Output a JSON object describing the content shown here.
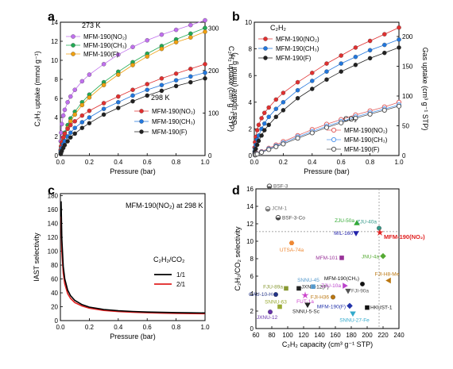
{
  "panels": {
    "a": {
      "letter": "a"
    },
    "b": {
      "letter": "b"
    },
    "c": {
      "letter": "c"
    },
    "d": {
      "letter": "d"
    }
  },
  "chart_data": [
    {
      "id": "a",
      "type": "scatter",
      "xlabel": "Pressure (bar)",
      "ylabel_left": "C₂H₂ uptake (mmol g⁻¹)",
      "ylabel_right": "C₂H₂ uptake (cm³ g⁻¹ STP)",
      "xlim": [
        0,
        1.0
      ],
      "ylim": [
        0,
        14
      ],
      "y2lim": [
        0,
        313.6
      ],
      "xticks": [
        "0.0",
        "0.2",
        "0.4",
        "0.6",
        "0.8",
        "1.0"
      ],
      "yticks": [
        "0",
        "2",
        "4",
        "6",
        "8",
        "10",
        "12",
        "14"
      ],
      "y2ticks": [
        "0",
        "100",
        "200",
        "300"
      ],
      "legend_groups": [
        {
          "title": "273 K",
          "placement": "top-left"
        },
        {
          "title": "298 K",
          "placement": "center-right"
        }
      ],
      "series": [
        {
          "name": "MFM-190(NO₂)",
          "temp": "273 K",
          "color": "#c070ee",
          "marker": "circle",
          "x": [
            0.002,
            0.005,
            0.01,
            0.02,
            0.03,
            0.05,
            0.07,
            0.1,
            0.15,
            0.2,
            0.3,
            0.4,
            0.5,
            0.6,
            0.7,
            0.8,
            0.9,
            1.0
          ],
          "y": [
            1.5,
            2.4,
            3.3,
            4.2,
            4.8,
            5.6,
            6.2,
            6.9,
            7.8,
            8.5,
            9.6,
            10.6,
            11.4,
            12.1,
            12.7,
            13.2,
            13.7,
            14.2
          ]
        },
        {
          "name": "MFM-190(CH₃)",
          "temp": "273 K",
          "color": "#22aa55",
          "marker": "circle",
          "x": [
            0.002,
            0.005,
            0.01,
            0.02,
            0.03,
            0.05,
            0.07,
            0.1,
            0.15,
            0.2,
            0.3,
            0.4,
            0.5,
            0.6,
            0.7,
            0.8,
            0.9,
            1.0
          ],
          "y": [
            0.5,
            0.9,
            1.3,
            1.9,
            2.4,
            3.2,
            3.9,
            4.6,
            5.6,
            6.4,
            7.7,
            8.8,
            9.8,
            10.7,
            11.5,
            12.2,
            12.8,
            13.4
          ]
        },
        {
          "name": "MFM-190(F)",
          "temp": "273 K",
          "color": "#f0a010",
          "marker": "circle",
          "x": [
            0.002,
            0.005,
            0.01,
            0.02,
            0.03,
            0.05,
            0.07,
            0.1,
            0.15,
            0.2,
            0.3,
            0.4,
            0.5,
            0.6,
            0.7,
            0.8,
            0.9,
            1.0
          ],
          "y": [
            0.3,
            0.6,
            1.0,
            1.6,
            2.1,
            2.9,
            3.6,
            4.3,
            5.3,
            6.1,
            7.4,
            8.5,
            9.5,
            10.4,
            11.2,
            11.9,
            12.4,
            13.0
          ]
        },
        {
          "name": "MFM-190(NO₂)",
          "temp": "298 K",
          "color": "#e03030",
          "marker": "circle",
          "x": [
            0.002,
            0.005,
            0.01,
            0.02,
            0.03,
            0.05,
            0.07,
            0.1,
            0.15,
            0.2,
            0.3,
            0.4,
            0.5,
            0.6,
            0.7,
            0.8,
            0.9,
            1.0
          ],
          "y": [
            0.6,
            1.0,
            1.4,
            1.9,
            2.3,
            2.8,
            3.2,
            3.6,
            4.2,
            4.7,
            5.5,
            6.2,
            6.9,
            7.5,
            8.1,
            8.6,
            9.1,
            9.6
          ]
        },
        {
          "name": "MFM-190(CH₃)",
          "temp": "298 K",
          "color": "#2277dd",
          "marker": "circle",
          "x": [
            0.002,
            0.005,
            0.01,
            0.02,
            0.03,
            0.05,
            0.07,
            0.1,
            0.15,
            0.2,
            0.3,
            0.4,
            0.5,
            0.6,
            0.7,
            0.8,
            0.9,
            1.0
          ],
          "y": [
            0.3,
            0.5,
            0.8,
            1.2,
            1.5,
            2.0,
            2.4,
            2.9,
            3.5,
            4.0,
            4.9,
            5.6,
            6.3,
            6.9,
            7.4,
            7.9,
            8.3,
            8.7
          ]
        },
        {
          "name": "MFM-190(F)",
          "temp": "298 K",
          "color": "#222222",
          "marker": "circle",
          "x": [
            0.002,
            0.005,
            0.01,
            0.02,
            0.03,
            0.05,
            0.07,
            0.1,
            0.15,
            0.2,
            0.3,
            0.4,
            0.5,
            0.6,
            0.7,
            0.8,
            0.9,
            1.0
          ],
          "y": [
            0.15,
            0.3,
            0.5,
            0.8,
            1.1,
            1.5,
            1.9,
            2.3,
            2.9,
            3.4,
            4.3,
            5.0,
            5.7,
            6.3,
            6.8,
            7.3,
            7.7,
            8.1
          ]
        }
      ]
    },
    {
      "id": "b",
      "type": "scatter",
      "xlabel": "Pressure (bar)",
      "ylabel_left": "Gas uptake (mmol g⁻¹)",
      "ylabel_right": "Gas uptake (cm³ g⁻¹ STP)",
      "xlim": [
        0,
        1.0
      ],
      "ylim": [
        0,
        10
      ],
      "y2lim": [
        0,
        224
      ],
      "xticks": [
        "0.0",
        "0.2",
        "0.4",
        "0.6",
        "0.8",
        "1.0"
      ],
      "yticks": [
        "0",
        "2",
        "4",
        "6",
        "8",
        "10"
      ],
      "y2ticks": [
        "0",
        "50",
        "100",
        "150",
        "200"
      ],
      "legend_groups": [
        {
          "title": "C₂H₂",
          "placement": "top-left"
        },
        {
          "title": "CO₂",
          "placement": "bottom-right"
        }
      ],
      "series": [
        {
          "name": "MFM-190(NO₂)",
          "gas": "C₂H₂",
          "color": "#e03030",
          "marker": "circle",
          "x": [
            0.002,
            0.005,
            0.01,
            0.02,
            0.03,
            0.05,
            0.07,
            0.1,
            0.15,
            0.2,
            0.3,
            0.4,
            0.5,
            0.6,
            0.7,
            0.8,
            0.9,
            1.0
          ],
          "y": [
            0.6,
            1.0,
            1.4,
            1.9,
            2.3,
            2.8,
            3.2,
            3.6,
            4.2,
            4.7,
            5.5,
            6.2,
            6.9,
            7.5,
            8.1,
            8.6,
            9.1,
            9.6
          ]
        },
        {
          "name": "MFM-190(CH₃)",
          "gas": "C₂H₂",
          "color": "#2277dd",
          "marker": "circle",
          "x": [
            0.002,
            0.005,
            0.01,
            0.02,
            0.03,
            0.05,
            0.07,
            0.1,
            0.15,
            0.2,
            0.3,
            0.4,
            0.5,
            0.6,
            0.7,
            0.8,
            0.9,
            1.0
          ],
          "y": [
            0.3,
            0.5,
            0.8,
            1.2,
            1.5,
            2.0,
            2.4,
            2.9,
            3.5,
            4.0,
            4.9,
            5.6,
            6.3,
            6.9,
            7.4,
            7.9,
            8.3,
            8.7
          ]
        },
        {
          "name": "MFM-190(F)",
          "gas": "C₂H₂",
          "color": "#222222",
          "marker": "circle",
          "x": [
            0.002,
            0.005,
            0.01,
            0.02,
            0.03,
            0.05,
            0.07,
            0.1,
            0.15,
            0.2,
            0.3,
            0.4,
            0.5,
            0.6,
            0.7,
            0.8,
            0.9,
            1.0
          ],
          "y": [
            0.15,
            0.3,
            0.5,
            0.8,
            1.1,
            1.5,
            1.9,
            2.3,
            2.9,
            3.4,
            4.3,
            5.0,
            5.7,
            6.3,
            6.8,
            7.3,
            7.7,
            8.1
          ]
        },
        {
          "name": "MFM-190(NO₂)",
          "gas": "CO₂",
          "color": "#e06060",
          "marker": "open-circle",
          "x": [
            0.005,
            0.01,
            0.02,
            0.05,
            0.1,
            0.15,
            0.2,
            0.3,
            0.4,
            0.5,
            0.6,
            0.7,
            0.8,
            0.9,
            1.0
          ],
          "y": [
            0.05,
            0.1,
            0.15,
            0.3,
            0.55,
            0.8,
            1.05,
            1.5,
            1.95,
            2.35,
            2.7,
            3.05,
            3.35,
            3.65,
            4.0
          ]
        },
        {
          "name": "MFM-190(CH₃)",
          "gas": "CO₂",
          "color": "#5599ee",
          "marker": "open-circle",
          "x": [
            0.005,
            0.01,
            0.02,
            0.05,
            0.1,
            0.15,
            0.2,
            0.3,
            0.4,
            0.5,
            0.6,
            0.7,
            0.8,
            0.9,
            1.0
          ],
          "y": [
            0.05,
            0.08,
            0.13,
            0.27,
            0.5,
            0.72,
            0.95,
            1.4,
            1.8,
            2.2,
            2.55,
            2.9,
            3.2,
            3.5,
            3.8
          ]
        },
        {
          "name": "MFM-190(F)",
          "gas": "CO₂",
          "color": "#555555",
          "marker": "open-circle",
          "x": [
            0.005,
            0.01,
            0.02,
            0.05,
            0.1,
            0.15,
            0.2,
            0.3,
            0.4,
            0.5,
            0.6,
            0.7,
            0.8,
            0.9,
            1.0
          ],
          "y": [
            0.04,
            0.07,
            0.11,
            0.24,
            0.45,
            0.66,
            0.87,
            1.3,
            1.7,
            2.1,
            2.45,
            2.8,
            3.1,
            3.4,
            3.7
          ]
        }
      ]
    },
    {
      "id": "c",
      "type": "line",
      "title": "MFM-190(NO₂) at 298 K",
      "xlabel": "Pressure (bar)",
      "ylabel": "IAST selectivity",
      "xlim": [
        0,
        1.0
      ],
      "ylim": [
        0,
        183
      ],
      "xticks": [
        "0.0",
        "0.2",
        "0.4",
        "0.6",
        "0.8",
        "1.0"
      ],
      "yticks": [
        "0",
        "20",
        "40",
        "60",
        "80",
        "100",
        "120",
        "140",
        "160",
        "180"
      ],
      "legend_title": "C₂H₂/CO₂",
      "series": [
        {
          "name": "1/1",
          "color": "#000000",
          "x": [
            0.005,
            0.01,
            0.02,
            0.03,
            0.05,
            0.07,
            0.1,
            0.15,
            0.2,
            0.3,
            0.4,
            0.5,
            0.6,
            0.7,
            0.8,
            0.9,
            1.0
          ],
          "y": [
            172,
            118,
            78,
            60,
            44,
            36,
            29,
            23,
            19.5,
            16,
            14.2,
            13.1,
            12.4,
            11.9,
            11.5,
            11.2,
            11.0
          ]
        },
        {
          "name": "2/1",
          "color": "#e02020",
          "x": [
            0.005,
            0.01,
            0.02,
            0.03,
            0.05,
            0.07,
            0.1,
            0.15,
            0.2,
            0.3,
            0.4,
            0.5,
            0.6,
            0.7,
            0.8,
            0.9,
            1.0
          ],
          "y": [
            150,
            100,
            68,
            53,
            39,
            32,
            26,
            21,
            17.8,
            14.6,
            13.0,
            12.0,
            11.3,
            10.8,
            10.4,
            10.1,
            9.9
          ]
        }
      ]
    },
    {
      "id": "d",
      "type": "scatter",
      "xlabel": "C₂H₂ capacity (cm³ g⁻¹ STP)",
      "ylabel": "C₂H₂/CO₂ selectivity",
      "xlim": [
        60,
        240
      ],
      "ylim": [
        0,
        16
      ],
      "xticks": [
        "60",
        "80",
        "100",
        "120",
        "140",
        "160",
        "180",
        "200",
        "220",
        "240"
      ],
      "yticks": [
        "0",
        "2",
        "4",
        "6",
        "8",
        "10",
        "12",
        "14",
        "16"
      ],
      "ref_lines": {
        "x": 215,
        "y": 11.1
      },
      "points": [
        {
          "label": "BSF-3",
          "x": 77,
          "y": 16.3,
          "color": "#555555",
          "marker": "circle-half"
        },
        {
          "label": "JCM-1",
          "x": 75,
          "y": 13.7,
          "color": "#777777",
          "marker": "circle-half"
        },
        {
          "label": "BSF-3-Co",
          "x": 88,
          "y": 12.7,
          "color": "#444444",
          "marker": "circle-half"
        },
        {
          "label": "ZJU-50a",
          "x": 187,
          "y": 12.1,
          "color": "#33aa33",
          "marker": "triangle"
        },
        {
          "label": "ZJU-40a",
          "x": 215,
          "y": 11.5,
          "color": "#339988",
          "marker": "circle"
        },
        {
          "label": "MIL-160",
          "x": 186,
          "y": 10.9,
          "color": "#2222aa",
          "marker": "triangle-down"
        },
        {
          "label": "MFM-190(NO₂)",
          "x": 216,
          "y": 11.0,
          "color": "#e02020",
          "marker": "star"
        },
        {
          "label": "UTSA-74a",
          "x": 105,
          "y": 9.8,
          "color": "#ee8833",
          "marker": "hexagon"
        },
        {
          "label": "MFM-101",
          "x": 168,
          "y": 8.1,
          "color": "#993399",
          "marker": "square"
        },
        {
          "label": "JNU-4a",
          "x": 220,
          "y": 8.3,
          "color": "#55aa33",
          "marker": "diamond"
        },
        {
          "label": "MFM-190(CH₃)",
          "x": 194,
          "y": 5.1,
          "color": "#111111",
          "marker": "circle"
        },
        {
          "label": "FJI-H8-Me",
          "x": 227,
          "y": 5.5,
          "color": "#bb7711",
          "marker": "triangle-left"
        },
        {
          "label": "FJU-89a",
          "x": 98,
          "y": 4.6,
          "color": "#889933",
          "marker": "square"
        },
        {
          "label": "JXNU-12(F)",
          "x": 114,
          "y": 4.6,
          "color": "#222222",
          "marker": "square"
        },
        {
          "label": "SNNU-45",
          "x": 132,
          "y": 4.8,
          "color": "#5599cc",
          "marker": "square"
        },
        {
          "label": "ZJU-10a",
          "x": 172,
          "y": 4.9,
          "color": "#bb44cc",
          "marker": "triangle-right"
        },
        {
          "label": "FJI-90a",
          "x": 176,
          "y": 4.3,
          "color": "#555555",
          "marker": "triangle-down"
        },
        {
          "label": "CAU-10-H",
          "x": 85,
          "y": 3.9,
          "color": "#223388",
          "marker": "circle"
        },
        {
          "label": "FUT-1a",
          "x": 122,
          "y": 3.8,
          "color": "#cc44cc",
          "marker": "star"
        },
        {
          "label": "FJI-H36",
          "x": 157,
          "y": 3.6,
          "color": "#bb7711",
          "marker": "circle"
        },
        {
          "label": "SNNU-63",
          "x": 90,
          "y": 2.5,
          "color": "#99aa33",
          "marker": "square"
        },
        {
          "label": "SNNU-5-Sc",
          "x": 125,
          "y": 2.7,
          "color": "#222222",
          "marker": "triangle-down"
        },
        {
          "label": "MFM-190(F)",
          "x": 178,
          "y": 2.6,
          "color": "#2233aa",
          "marker": "diamond"
        },
        {
          "label": "HKUST-1",
          "x": 200,
          "y": 2.4,
          "color": "#111111",
          "marker": "square"
        },
        {
          "label": "JXNU-12",
          "x": 78,
          "y": 1.9,
          "color": "#6633aa",
          "marker": "circle"
        },
        {
          "label": "SNNU-27-Fe",
          "x": 182,
          "y": 1.7,
          "color": "#33aacc",
          "marker": "triangle-down"
        }
      ]
    }
  ]
}
